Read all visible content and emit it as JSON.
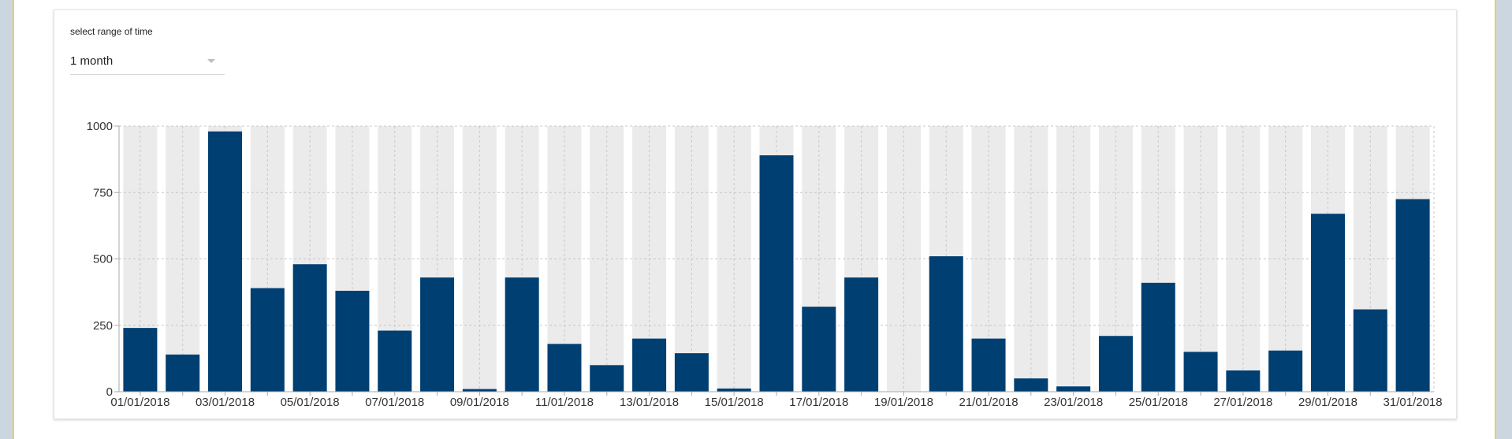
{
  "filter": {
    "label": "select range of time",
    "selected": "1 month"
  },
  "chart_data": {
    "type": "bar",
    "categories": [
      "01/01/2018",
      "02/01/2018",
      "03/01/2018",
      "04/01/2018",
      "05/01/2018",
      "06/01/2018",
      "07/01/2018",
      "08/01/2018",
      "09/01/2018",
      "10/01/2018",
      "11/01/2018",
      "12/01/2018",
      "13/01/2018",
      "14/01/2018",
      "15/01/2018",
      "16/01/2018",
      "17/01/2018",
      "18/01/2018",
      "19/01/2018",
      "20/01/2018",
      "21/01/2018",
      "22/01/2018",
      "23/01/2018",
      "24/01/2018",
      "25/01/2018",
      "26/01/2018",
      "27/01/2018",
      "28/01/2018",
      "29/01/2018",
      "30/01/2018",
      "31/01/2018"
    ],
    "values": [
      240,
      140,
      980,
      390,
      480,
      380,
      230,
      430,
      10,
      430,
      180,
      100,
      200,
      145,
      12,
      890,
      320,
      430,
      0,
      510,
      200,
      50,
      20,
      210,
      410,
      150,
      80,
      155,
      670,
      310,
      725
    ],
    "x_tick_labels": [
      "01/01/2018",
      "03/01/2018",
      "05/01/2018",
      "07/01/2018",
      "09/01/2018",
      "11/01/2018",
      "13/01/2018",
      "15/01/2018",
      "17/01/2018",
      "19/01/2018",
      "21/01/2018",
      "23/01/2018",
      "25/01/2018",
      "27/01/2018",
      "29/01/2018",
      "31/01/2018"
    ],
    "y_ticks": [
      0,
      250,
      500,
      750,
      1000
    ],
    "ylim": [
      0,
      1000
    ],
    "title": "",
    "xlabel": "",
    "ylabel": "",
    "grid": true,
    "colors": {
      "bar": "#003f72",
      "background_bar": "#ebebeb",
      "grid": "#c8c8c8",
      "axis": "#aaaaaa"
    }
  }
}
